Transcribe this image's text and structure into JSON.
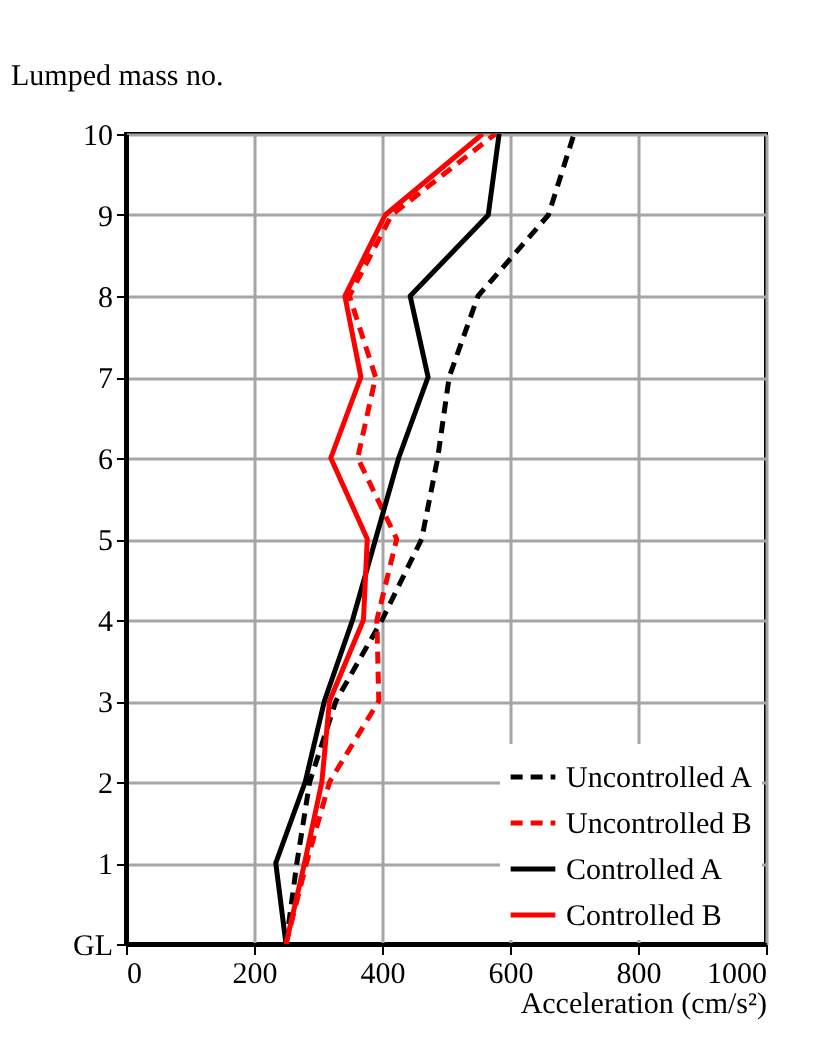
{
  "chart_data": {
    "type": "line",
    "xlabel": "Acceleration (cm/s²)",
    "ylabel": "Lumped mass no.",
    "xlim": [
      0,
      1000
    ],
    "xticks": [
      0,
      200,
      400,
      600,
      800,
      1000
    ],
    "ylim": [
      0,
      10
    ],
    "yticks": [
      {
        "value": 0,
        "label": "GL"
      },
      1,
      2,
      3,
      4,
      5,
      6,
      7,
      8,
      9,
      10
    ],
    "grid": true,
    "legend": "bottom right",
    "series": [
      {
        "name": "Uncontrolled A",
        "color": "#000000",
        "line_style": "dashed",
        "x": [
          250,
          267,
          287,
          328,
          400,
          462,
          487,
          505,
          550,
          660,
          700
        ],
        "values": [
          0,
          1,
          2,
          3,
          4,
          5,
          6,
          7,
          8,
          9,
          10
        ]
      },
      {
        "name": "Uncontrolled B",
        "color": "#ff0000",
        "line_style": "dashed",
        "x": [
          250,
          282,
          318,
          395,
          392,
          423,
          362,
          390,
          349,
          415,
          577
        ],
        "values": [
          0,
          1,
          2,
          3,
          4,
          5,
          6,
          7,
          8,
          9,
          10
        ]
      },
      {
        "name": "Controlled A",
        "color": "#000000",
        "line_style": "solid",
        "x": [
          250,
          234,
          280,
          310,
          354,
          390,
          426,
          472,
          444,
          566,
          583
        ],
        "values": [
          0,
          1,
          2,
          3,
          4,
          5,
          6,
          7,
          8,
          9,
          10
        ]
      },
      {
        "name": "Controlled B",
        "color": "#ff0000",
        "line_style": "solid",
        "x": [
          250,
          279,
          306,
          318,
          371,
          377,
          320,
          367,
          342,
          405,
          557
        ],
        "values": [
          0,
          1,
          2,
          3,
          4,
          5,
          6,
          7,
          8,
          9,
          10
        ]
      }
    ]
  }
}
